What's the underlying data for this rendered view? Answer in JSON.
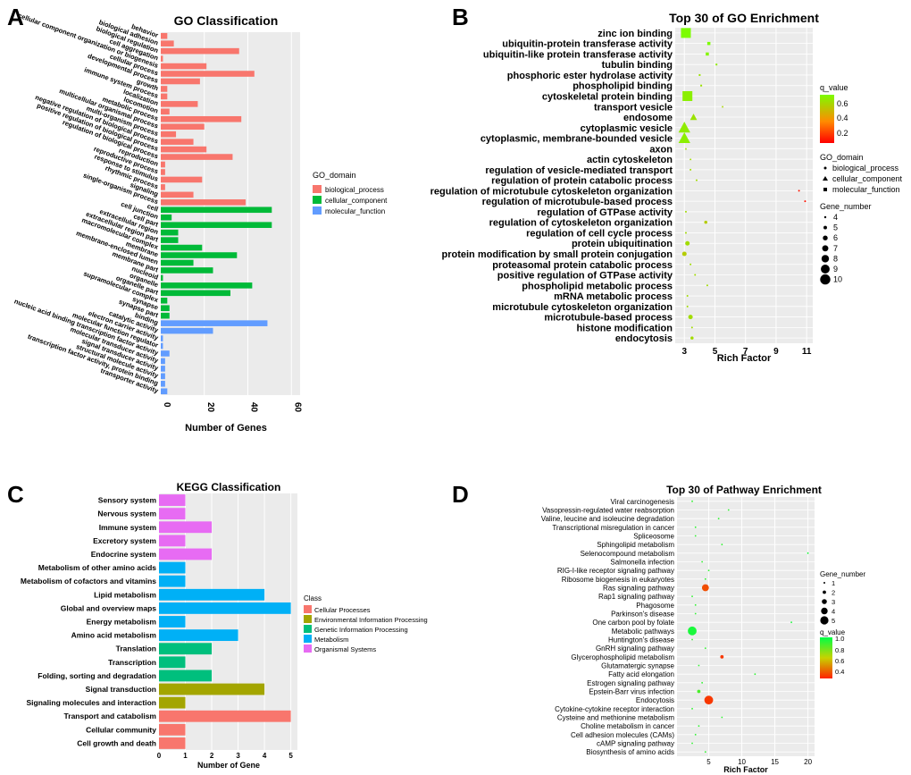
{
  "figure": {
    "labels": [
      "A",
      "B",
      "C",
      "D"
    ]
  },
  "colors": {
    "bio": "#F8766D",
    "cell": "#00BA38",
    "mol": "#619CFF",
    "panel_bg": "#EBEBEB",
    "grid": "#FFFFFF",
    "kegg": [
      "#F8766D",
      "#A3A500",
      "#00BF7D",
      "#00B0F6",
      "#E76BF3"
    ],
    "grad_high": "#7CFC00",
    "grad_mid": "#FF8C00",
    "grad_low": "#FF0000"
  },
  "chart_data": [
    {
      "id": "A",
      "type": "bar",
      "title": "GO Classification",
      "xlabel": "Number of Genes",
      "xlim": [
        0,
        64
      ],
      "xticks": [
        "0",
        "20",
        "40",
        "60"
      ],
      "legend_title": "GO_domain",
      "legend": [
        {
          "label": "biological_process",
          "color": "#F8766D"
        },
        {
          "label": "cellular_component",
          "color": "#00BA38"
        },
        {
          "label": "molecular_function",
          "color": "#619CFF"
        }
      ],
      "categories": [
        "behavior",
        "biological adhesion",
        "biological regulation",
        "cell aggregation",
        "cellular component organization or biogenesis",
        "cellular process",
        "developmental process",
        "growth",
        "immune system process",
        "localization",
        "locomotion",
        "metabolic process",
        "multicellular organismal process",
        "multi-organism process",
        "negative regulation of biological process",
        "positive regulation of biological process",
        "regulation of biological process",
        "reproduction",
        "reproductive process",
        "response to stimulus",
        "rhythmic process",
        "signaling",
        "single-organism process",
        "cell",
        "cell junction",
        "cell part",
        "extracellular region",
        "extracellular region part",
        "macromolecular complex",
        "membrane",
        "membrane-enclosed lumen",
        "membrane part",
        "nucleoid",
        "organelle",
        "organelle part",
        "supramolecular complex",
        "synapse",
        "synapse part",
        "binding",
        "catalytic activity",
        "electron carrier activity",
        "molecular function regulator",
        "nucleic acid binding transcription factor activity",
        "molecular transducer activity",
        "signal transducer activity",
        "structural molecule activity",
        "transcription factor activity, protein binding",
        "transporter activity"
      ],
      "values": [
        3,
        6,
        36,
        1,
        21,
        43,
        18,
        3,
        3,
        17,
        4,
        37,
        20,
        7,
        15,
        21,
        33,
        2,
        2,
        19,
        2,
        15,
        39,
        51,
        5,
        51,
        8,
        8,
        19,
        35,
        15,
        24,
        1,
        42,
        32,
        3,
        4,
        4,
        49,
        24,
        1,
        1,
        4,
        2,
        2,
        2,
        2,
        3
      ],
      "domains": [
        "bio",
        "bio",
        "bio",
        "bio",
        "bio",
        "bio",
        "bio",
        "bio",
        "bio",
        "bio",
        "bio",
        "bio",
        "bio",
        "bio",
        "bio",
        "bio",
        "bio",
        "bio",
        "bio",
        "bio",
        "bio",
        "bio",
        "bio",
        "cell",
        "cell",
        "cell",
        "cell",
        "cell",
        "cell",
        "cell",
        "cell",
        "cell",
        "cell",
        "cell",
        "cell",
        "cell",
        "cell",
        "cell",
        "mol",
        "mol",
        "mol",
        "mol",
        "mol",
        "mol",
        "mol",
        "mol",
        "mol",
        "mol"
      ]
    },
    {
      "id": "B",
      "type": "scatter",
      "title": "Top 30 of GO Enrichment",
      "xlabel": "Rich Factor",
      "xlim": [
        2.4,
        11.4
      ],
      "xticks": [
        3,
        5,
        7,
        9,
        11
      ],
      "categories": [
        "zinc ion binding",
        "ubiquitin-protein transferase activity",
        "ubiquitin-like protein transferase activity",
        "tubulin binding",
        "phosphoric ester hydrolase activity",
        "phospholipid binding",
        "cytoskeletal protein binding",
        "transport vesicle",
        "endosome",
        "cytoplasmic vesicle",
        "cytoplasmic, membrane-bounded vesicle",
        "axon",
        "actin cytoskeleton",
        "regulation of vesicle-mediated transport",
        "regulation of protein catabolic process",
        "regulation of microtubule cytoskeleton organization",
        "regulation of microtubule-based process",
        "regulation of GTPase activity",
        "regulation of cytoskeleton organization",
        "regulation of cell cycle process",
        "protein ubiquitination",
        "protein modification by small protein conjugation",
        "proteasomal protein catabolic process",
        "positive regulation of GTPase activity",
        "phospholipid metabolic process",
        "mRNA metabolic process",
        "microtubule cytoskeleton organization",
        "microtubule-based process",
        "histone modification",
        "endocytosis"
      ],
      "x": [
        3.1,
        4.6,
        4.5,
        5.1,
        4.0,
        4.1,
        3.2,
        5.5,
        3.6,
        3.0,
        3.0,
        3.1,
        3.4,
        3.4,
        3.8,
        10.5,
        10.9,
        3.1,
        4.4,
        3.1,
        3.2,
        3.0,
        3.4,
        3.7,
        4.5,
        3.2,
        3.2,
        3.4,
        3.5,
        3.5
      ],
      "q": [
        0.7,
        0.7,
        0.68,
        0.65,
        0.62,
        0.62,
        0.66,
        0.58,
        0.62,
        0.65,
        0.66,
        0.6,
        0.6,
        0.6,
        0.6,
        0.05,
        0.04,
        0.6,
        0.55,
        0.6,
        0.6,
        0.55,
        0.6,
        0.6,
        0.6,
        0.6,
        0.6,
        0.6,
        0.6,
        0.6
      ],
      "gene_number": [
        10,
        5,
        5,
        4,
        4,
        4,
        10,
        4,
        7,
        10,
        10,
        4,
        4,
        4,
        4,
        4,
        4,
        4,
        5,
        4,
        6,
        6,
        4,
        4,
        4,
        4,
        4,
        6,
        4,
        5
      ],
      "shapes": [
        "mf",
        "mf",
        "mf",
        "mf",
        "mf",
        "mf",
        "mf",
        "cc",
        "cc",
        "cc",
        "cc",
        "cc",
        "cc",
        "bp",
        "bp",
        "bp",
        "bp",
        "bp",
        "bp",
        "bp",
        "bp",
        "bp",
        "bp",
        "bp",
        "bp",
        "bp",
        "bp",
        "bp",
        "bp",
        "bp"
      ],
      "legend_q_title": "q_value",
      "legend_q_ticks": [
        "0.6",
        "0.4",
        "0.2"
      ],
      "legend_shape_title": "GO_domain",
      "legend_shape": [
        "biological_process",
        "cellular_component",
        "molecular_function"
      ],
      "legend_size_title": "Gene_number",
      "legend_size": [
        "4",
        "5",
        "6",
        "7",
        "8",
        "9",
        "10"
      ]
    },
    {
      "id": "C",
      "type": "bar",
      "title": "KEGG Classification",
      "xlabel": "Number of Gene",
      "xlim": [
        0,
        5.25
      ],
      "xticks": [
        "0",
        "1",
        "2",
        "3",
        "4",
        "5"
      ],
      "legend_title": "Class",
      "legend": [
        {
          "label": "Cellular Processes",
          "color": "#F8766D"
        },
        {
          "label": "Environmental Information Processing",
          "color": "#A3A500"
        },
        {
          "label": "Genetic Information Processing",
          "color": "#00BF7D"
        },
        {
          "label": "Metabolism",
          "color": "#00B0F6"
        },
        {
          "label": "Organismal Systems",
          "color": "#E76BF3"
        }
      ],
      "categories": [
        "Sensory system",
        "Nervous system",
        "Immune system",
        "Excretory system",
        "Endocrine system",
        "Metabolism of other amino acids",
        "Metabolism of cofactors and vitamins",
        "Lipid metabolism",
        "Global and overview maps",
        "Energy metabolism",
        "Amino acid metabolism",
        "Translation",
        "Transcription",
        "Folding, sorting and degradation",
        "Signal transduction",
        "Signaling molecules and interaction",
        "Transport and catabolism",
        "Cellular community",
        "Cell growth and death"
      ],
      "values": [
        1,
        1,
        2,
        1,
        2,
        1,
        1,
        4,
        5,
        1,
        3,
        2,
        1,
        2,
        4,
        1,
        5,
        1,
        1
      ],
      "classes": [
        4,
        4,
        4,
        4,
        4,
        3,
        3,
        3,
        3,
        3,
        3,
        2,
        2,
        2,
        1,
        1,
        0,
        0,
        0
      ]
    },
    {
      "id": "D",
      "type": "scatter",
      "title": "Top 30 of Pathway Enrichment",
      "xlabel": "Rich Factor",
      "xlim": [
        0.2,
        21
      ],
      "xticks": [
        5,
        10,
        15,
        20
      ],
      "categories": [
        "Viral carcinogenesis",
        "Vasopressin-regulated water reabsorption",
        "Valine, leucine and isoleucine degradation",
        "Transcriptional misregulation in cancer",
        "Spliceosome",
        "Sphingolipid metabolism",
        "Selenocompound metabolism",
        "Salmonella infection",
        "RIG-I-like receptor signaling pathway",
        "Ribosome biogenesis in eukaryotes",
        "Ras signaling pathway",
        "Rap1 signaling pathway",
        "Phagosome",
        "Parkinson's disease",
        "One carbon pool by folate",
        "Metabolic pathways",
        "Huntington's disease",
        "GnRH signaling pathway",
        "Glycerophospholipid metabolism",
        "Glutamatergic synapse",
        "Fatty acid elongation",
        "Estrogen signaling pathway",
        "Epstein-Barr virus infection",
        "Endocytosis",
        "Cytokine-cytokine receptor interaction",
        "Cysteine and methionine metabolism",
        "Choline metabolism in cancer",
        "Cell adhesion molecules (CAMs)",
        "cAMP signaling pathway",
        "Biosynthesis of amino acids"
      ],
      "x": [
        2.5,
        8.0,
        6.5,
        3.0,
        3.0,
        7.0,
        20.0,
        4.0,
        5.0,
        4.5,
        4.5,
        2.5,
        3.0,
        3.0,
        17.5,
        2.5,
        2.5,
        4.5,
        7.0,
        3.5,
        12.0,
        4.0,
        3.5,
        5.0,
        2.5,
        7.0,
        3.5,
        3.0,
        2.5,
        4.5
      ],
      "q": [
        0.9,
        0.9,
        0.9,
        0.9,
        0.9,
        0.9,
        0.95,
        0.9,
        0.9,
        0.9,
        0.3,
        0.9,
        0.9,
        0.9,
        0.95,
        0.95,
        0.9,
        0.9,
        0.25,
        0.9,
        0.9,
        0.9,
        0.85,
        0.25,
        0.9,
        0.9,
        0.9,
        0.9,
        0.9,
        0.9
      ],
      "gene_number": [
        1,
        1,
        1,
        1,
        1,
        1,
        1,
        1,
        1,
        1,
        4,
        1,
        1,
        1,
        1,
        5,
        1,
        1,
        2,
        1,
        1,
        1,
        2,
        5,
        1,
        1,
        1,
        1,
        1,
        1
      ],
      "legend_size_title": "Gene_number",
      "legend_size": [
        "1",
        "2",
        "3",
        "4",
        "5"
      ],
      "legend_q_title": "q_value",
      "legend_q_ticks": [
        "1.0",
        "0.8",
        "0.6",
        "0.4"
      ]
    }
  ]
}
